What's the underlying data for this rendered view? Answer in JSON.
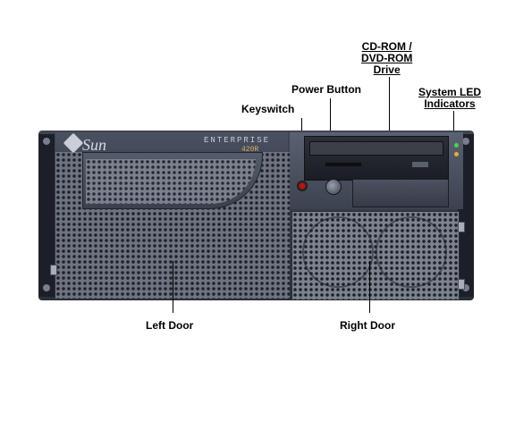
{
  "labels": {
    "cdrom_line1": "CD-ROM /",
    "cdrom_line2": "DVD-ROM",
    "cdrom_line3": "Drive",
    "power_button": "Power Button",
    "system_led_line1": "System LED",
    "system_led_line2": "Indicators",
    "keyswitch": "Keyswitch",
    "left_door": "Left Door",
    "right_door": "Right Door"
  },
  "device": {
    "brand": "Sun",
    "model_line1": "ENTERPRISE",
    "model_line2": "420R"
  }
}
